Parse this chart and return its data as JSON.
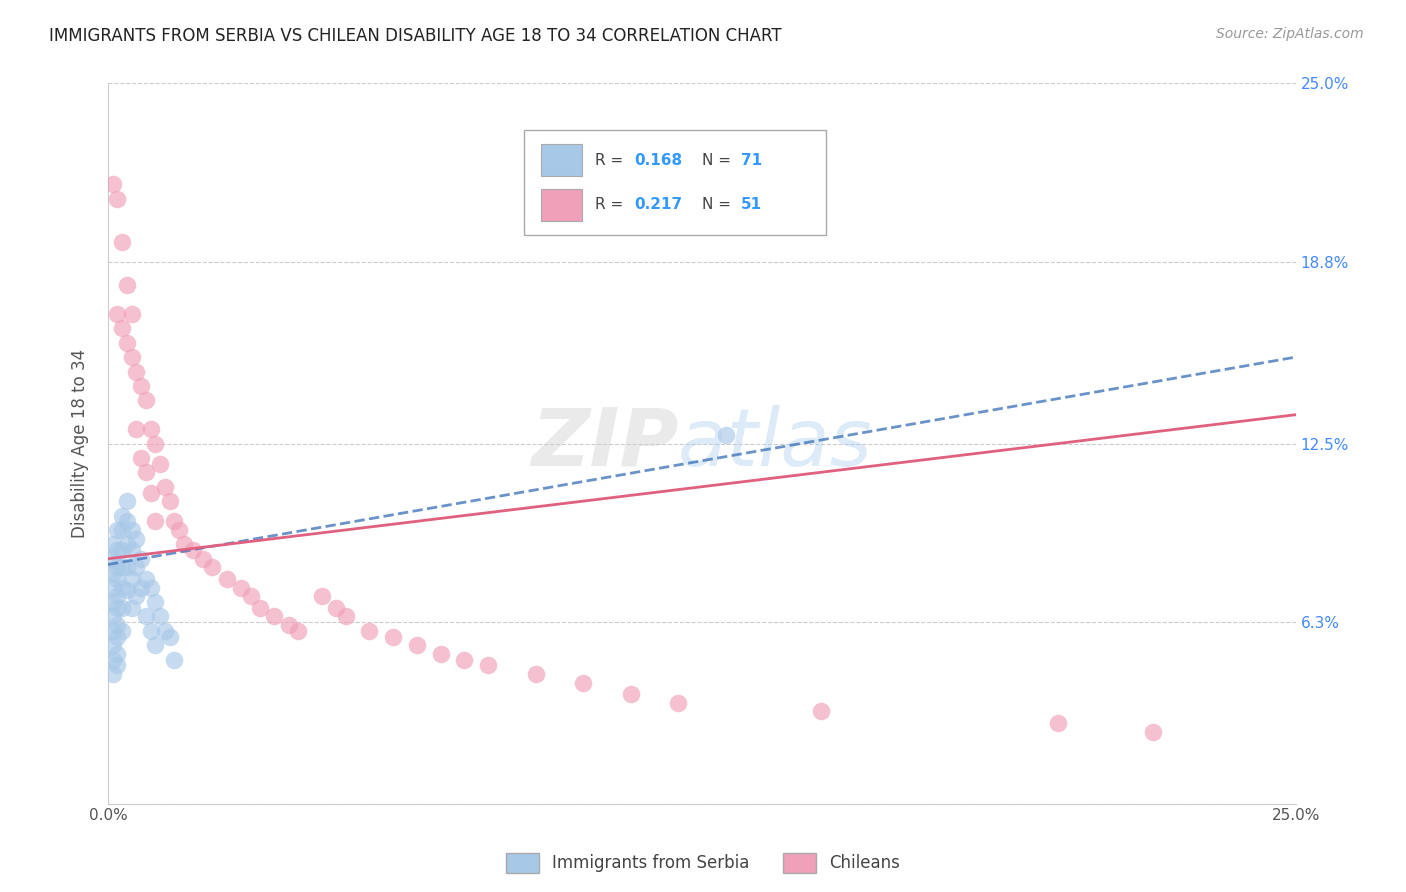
{
  "title": "IMMIGRANTS FROM SERBIA VS CHILEAN DISABILITY AGE 18 TO 34 CORRELATION CHART",
  "source": "Source: ZipAtlas.com",
  "ylabel": "Disability Age 18 to 34",
  "xlim": [
    0.0,
    0.25
  ],
  "ylim": [
    0.0,
    0.25
  ],
  "xtick_positions": [
    0.0,
    0.05,
    0.1,
    0.15,
    0.2,
    0.25
  ],
  "xtick_labels": [
    "0.0%",
    "",
    "",
    "",
    "",
    "25.0%"
  ],
  "right_yticks": [
    0.063,
    0.125,
    0.188,
    0.25
  ],
  "right_ytick_labels": [
    "6.3%",
    "12.5%",
    "18.8%",
    "25.0%"
  ],
  "label1": "Immigrants from Serbia",
  "label2": "Chileans",
  "color1": "#a8c8e8",
  "color2": "#f0a0b8",
  "trendline1_color": "#4477bb",
  "trendline2_color": "#e06080",
  "watermark_zip": "ZIP",
  "watermark_atlas": "atlas",
  "serbia_x": [
    0.001,
    0.001,
    0.001,
    0.001,
    0.001,
    0.001,
    0.001,
    0.001,
    0.001,
    0.001,
    0.002,
    0.002,
    0.002,
    0.002,
    0.002,
    0.002,
    0.002,
    0.002,
    0.002,
    0.002,
    0.003,
    0.003,
    0.003,
    0.003,
    0.003,
    0.003,
    0.003,
    0.004,
    0.004,
    0.004,
    0.004,
    0.004,
    0.005,
    0.005,
    0.005,
    0.005,
    0.006,
    0.006,
    0.006,
    0.007,
    0.007,
    0.008,
    0.008,
    0.009,
    0.009,
    0.01,
    0.01,
    0.011,
    0.012,
    0.013,
    0.014,
    0.13
  ],
  "serbia_y": [
    0.085,
    0.08,
    0.09,
    0.075,
    0.07,
    0.065,
    0.06,
    0.055,
    0.05,
    0.045,
    0.095,
    0.088,
    0.082,
    0.078,
    0.072,
    0.068,
    0.062,
    0.058,
    0.052,
    0.048,
    0.1,
    0.095,
    0.088,
    0.082,
    0.075,
    0.068,
    0.06,
    0.105,
    0.098,
    0.09,
    0.082,
    0.074,
    0.095,
    0.088,
    0.078,
    0.068,
    0.092,
    0.082,
    0.072,
    0.085,
    0.075,
    0.078,
    0.065,
    0.075,
    0.06,
    0.07,
    0.055,
    0.065,
    0.06,
    0.058,
    0.05,
    0.128
  ],
  "chilean_x": [
    0.001,
    0.002,
    0.002,
    0.003,
    0.003,
    0.004,
    0.004,
    0.005,
    0.005,
    0.006,
    0.006,
    0.007,
    0.007,
    0.008,
    0.008,
    0.009,
    0.009,
    0.01,
    0.01,
    0.011,
    0.012,
    0.013,
    0.014,
    0.015,
    0.016,
    0.018,
    0.02,
    0.022,
    0.025,
    0.028,
    0.03,
    0.032,
    0.035,
    0.038,
    0.04,
    0.045,
    0.048,
    0.05,
    0.055,
    0.06,
    0.065,
    0.07,
    0.075,
    0.08,
    0.09,
    0.1,
    0.11,
    0.12,
    0.15,
    0.2,
    0.22
  ],
  "chilean_y": [
    0.215,
    0.21,
    0.17,
    0.195,
    0.165,
    0.18,
    0.16,
    0.17,
    0.155,
    0.15,
    0.13,
    0.145,
    0.12,
    0.14,
    0.115,
    0.13,
    0.108,
    0.125,
    0.098,
    0.118,
    0.11,
    0.105,
    0.098,
    0.095,
    0.09,
    0.088,
    0.085,
    0.082,
    0.078,
    0.075,
    0.072,
    0.068,
    0.065,
    0.062,
    0.06,
    0.072,
    0.068,
    0.065,
    0.06,
    0.058,
    0.055,
    0.052,
    0.05,
    0.048,
    0.045,
    0.042,
    0.038,
    0.035,
    0.032,
    0.028,
    0.025
  ]
}
